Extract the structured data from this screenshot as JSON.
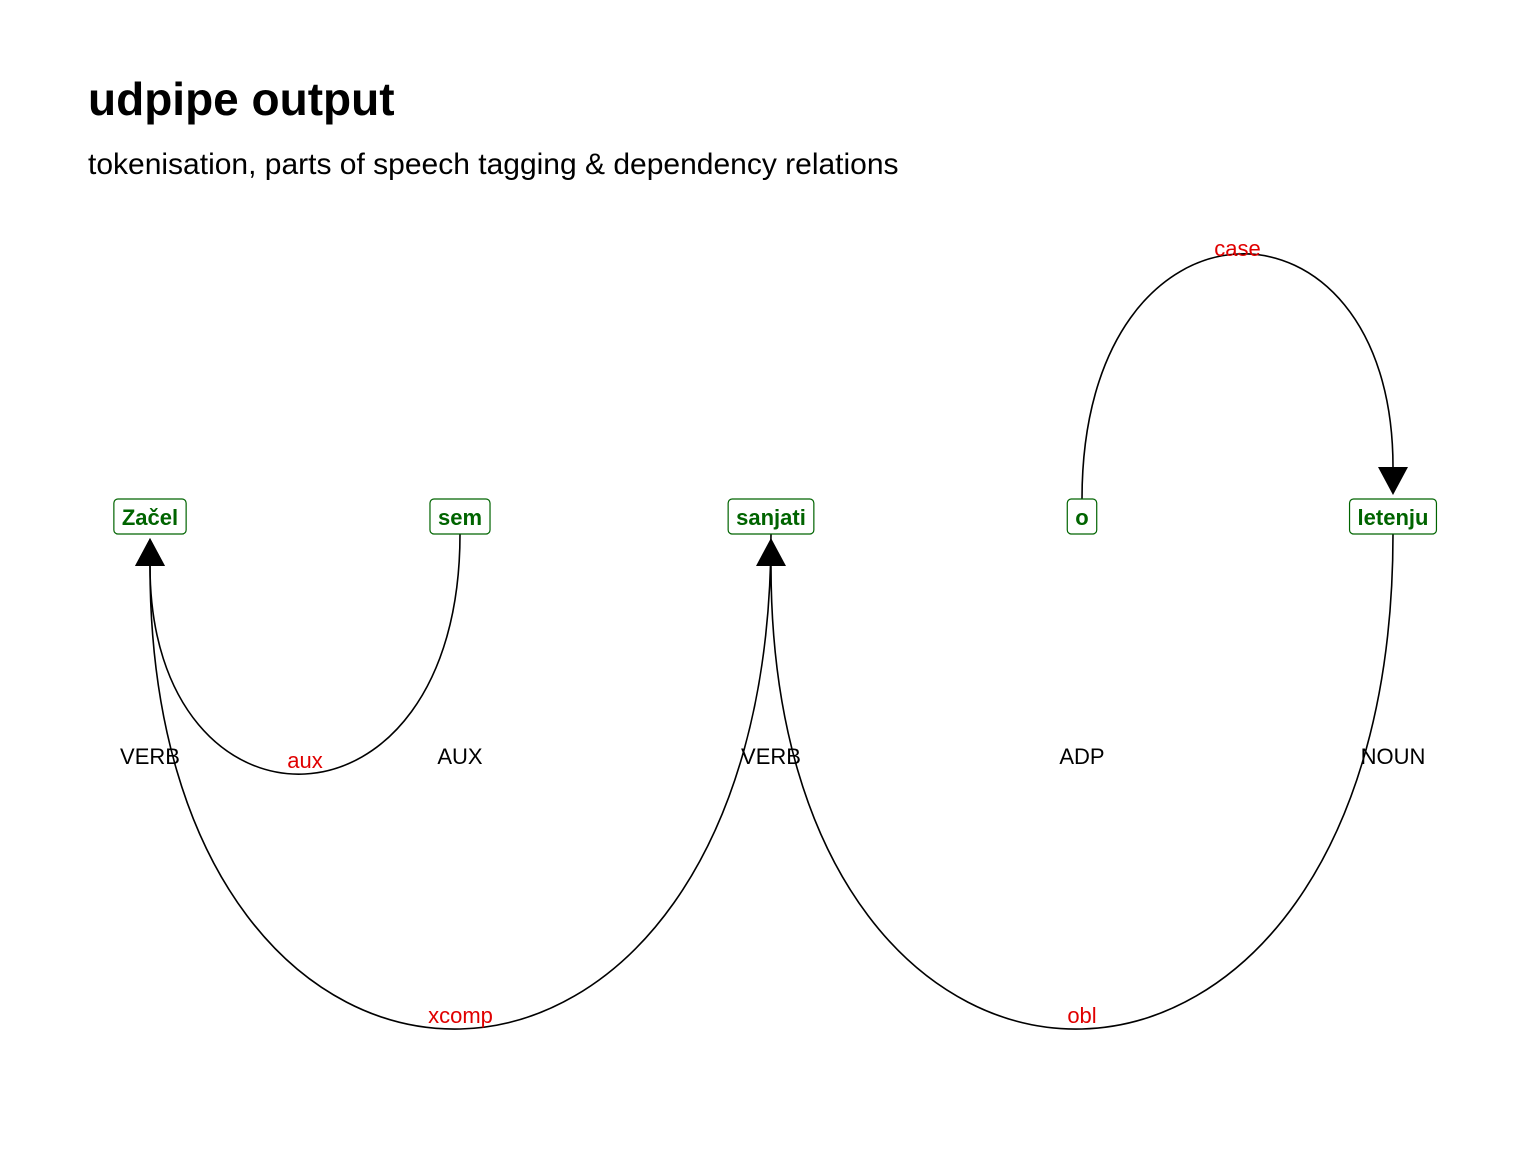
{
  "header": {
    "title": "udpipe output",
    "subtitle": "tokenisation, parts of speech tagging & dependency relations"
  },
  "colors": {
    "token": "#006400",
    "relation": "#e00000",
    "pos": "#000000",
    "arc": "#000000"
  },
  "tokens": [
    {
      "text": "Začel",
      "pos": "VERB"
    },
    {
      "text": "sem",
      "pos": "AUX"
    },
    {
      "text": "sanjati",
      "pos": "VERB"
    },
    {
      "text": "o",
      "pos": "ADP"
    },
    {
      "text": "letenju",
      "pos": "NOUN"
    }
  ],
  "relations": [
    {
      "from": 1,
      "to": 0,
      "label": "aux",
      "side": "below"
    },
    {
      "from": 2,
      "to": 0,
      "label": "xcomp",
      "side": "below"
    },
    {
      "from": 3,
      "to": 4,
      "label": "case",
      "side": "above"
    },
    {
      "from": 4,
      "to": 2,
      "label": "obl",
      "side": "below"
    }
  ]
}
